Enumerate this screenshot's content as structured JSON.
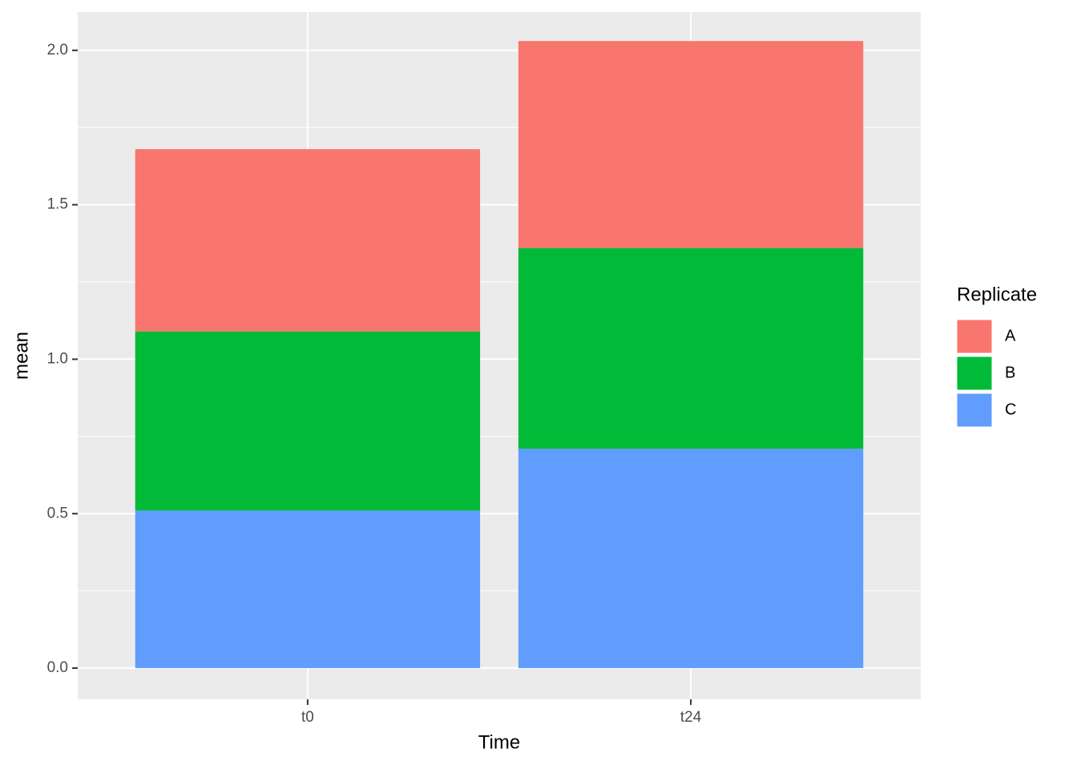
{
  "chart_data": {
    "type": "stacked_bar",
    "x_label": "Time",
    "y_label": "mean",
    "legend_title": "Replicate",
    "categories": [
      "t0",
      "t24"
    ],
    "series": [
      {
        "name": "A",
        "color": "#f8766d",
        "values": [
          0.59,
          0.67
        ]
      },
      {
        "name": "B",
        "color": "#00ba38",
        "values": [
          0.58,
          0.65
        ]
      },
      {
        "name": "C",
        "color": "#619cff",
        "values": [
          0.51,
          0.71
        ]
      }
    ],
    "ylim": [
      -0.101,
      2.124
    ],
    "yticks": [
      {
        "value": 0,
        "label": "0.0"
      },
      {
        "value": 0.5,
        "label": "0.5"
      },
      {
        "value": 1,
        "label": "1.0"
      },
      {
        "value": 1.5,
        "label": "1.5"
      },
      {
        "value": 2,
        "label": "2.0"
      }
    ],
    "grid": true,
    "legend_position": "right"
  }
}
